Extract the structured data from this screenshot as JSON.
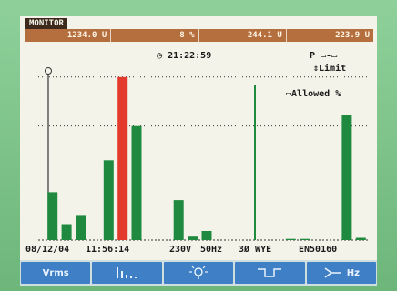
{
  "header": {
    "mode": "MONITOR",
    "readouts": [
      "1234.0 U",
      "8 %",
      "244.1 U",
      "223.9 U"
    ]
  },
  "clock": "21:22:59",
  "mode_indicator": "P ▭-▭",
  "limit_label": "⇕Limit",
  "allowed_label": "Allowed %",
  "info_bar": {
    "date": "08/12/04",
    "time": "11:56:14",
    "voltage": "230V",
    "frequency": "50Hz",
    "config": "3Ø WYE",
    "standard": "EN50160"
  },
  "softkeys": [
    {
      "label": "Vrms",
      "icon": "text"
    },
    {
      "label": "",
      "icon": "harmonics-bars-icon"
    },
    {
      "label": "",
      "icon": "flicker-bulb-icon"
    },
    {
      "label": "",
      "icon": "dip-waveform-icon"
    },
    {
      "label": "Hz",
      "icon": "frequency-arrow-icon"
    }
  ],
  "colors": {
    "bar": "#1f8a3f",
    "bar_exceeded": "#e23a2d",
    "screen": "#f4f3ea"
  },
  "chart_data": {
    "type": "bar",
    "bars": [
      {
        "value": 42,
        "exceeded": false
      },
      {
        "value": 14,
        "exceeded": false
      },
      {
        "value": 22,
        "exceeded": false
      },
      {
        "value": 0,
        "exceeded": false
      },
      {
        "value": 70,
        "exceeded": false
      },
      {
        "value": 143,
        "exceeded": true
      },
      {
        "value": 100,
        "exceeded": false
      },
      {
        "value": 0,
        "exceeded": false
      },
      {
        "value": 0,
        "exceeded": false
      },
      {
        "value": 35,
        "exceeded": false
      },
      {
        "value": 3,
        "exceeded": false
      },
      {
        "value": 8,
        "exceeded": false
      },
      {
        "value": 0,
        "exceeded": false
      },
      {
        "value": 0,
        "exceeded": false
      },
      {
        "value": 0,
        "exceeded": false
      },
      {
        "value": 0,
        "exceeded": false
      },
      {
        "value": 0,
        "exceeded": false
      },
      {
        "value": 1,
        "exceeded": false
      },
      {
        "value": 1,
        "exceeded": false
      },
      {
        "value": 0,
        "exceeded": false
      },
      {
        "value": 0,
        "exceeded": false
      },
      {
        "value": 110,
        "exceeded": false
      },
      {
        "value": 2,
        "exceeded": false
      }
    ],
    "limit_lines": [
      100,
      143
    ],
    "ylim": [
      0,
      150
    ]
  }
}
